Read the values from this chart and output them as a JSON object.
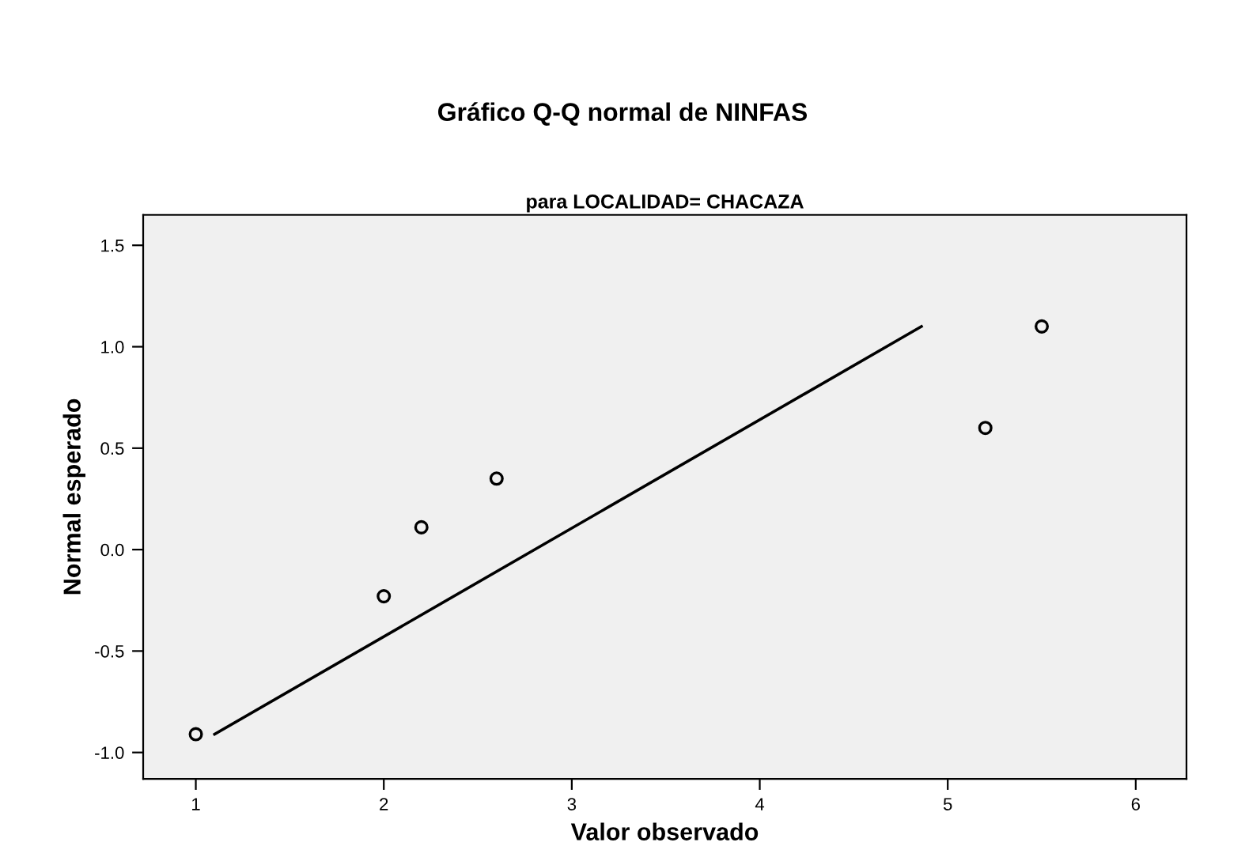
{
  "chart_data": {
    "type": "scatter",
    "title": "Gráfico Q-Q normal de NINFAS",
    "subtitle": "para LOCALIDAD= CHACAZA",
    "xlabel": "Valor observado",
    "ylabel": "Normal esperado",
    "series": [
      {
        "color": "#000000",
        "marker": "circle",
        "x": [
          1,
          2,
          2.2,
          2.6,
          5.2,
          5.5
        ],
        "values": [
          -0.91,
          -0.23,
          0.11,
          0.35,
          0.6,
          1.1
        ]
      },
      {
        "type": "line",
        "color": "#000000",
        "marker": "none",
        "line_style": "solid",
        "x": [
          1.1,
          4.86
        ],
        "values": [
          -0.91,
          1.1
        ]
      }
    ],
    "xlim": [
      0.72,
      6.27
    ],
    "ylim": [
      -1.13,
      1.65
    ],
    "xticks": [
      1,
      2,
      3,
      4,
      5,
      6
    ],
    "yticks": [
      {
        "value": -1.0,
        "label": "-1.0"
      },
      {
        "value": -0.5,
        "label": "-0.5"
      },
      {
        "value": 0.0,
        "label": "0.0"
      },
      {
        "value": 0.5,
        "label": "0.5"
      },
      {
        "value": 1.0,
        "label": "1.0"
      },
      {
        "value": 1.5,
        "label": "1.5"
      }
    ],
    "grid": false,
    "legend": false
  }
}
